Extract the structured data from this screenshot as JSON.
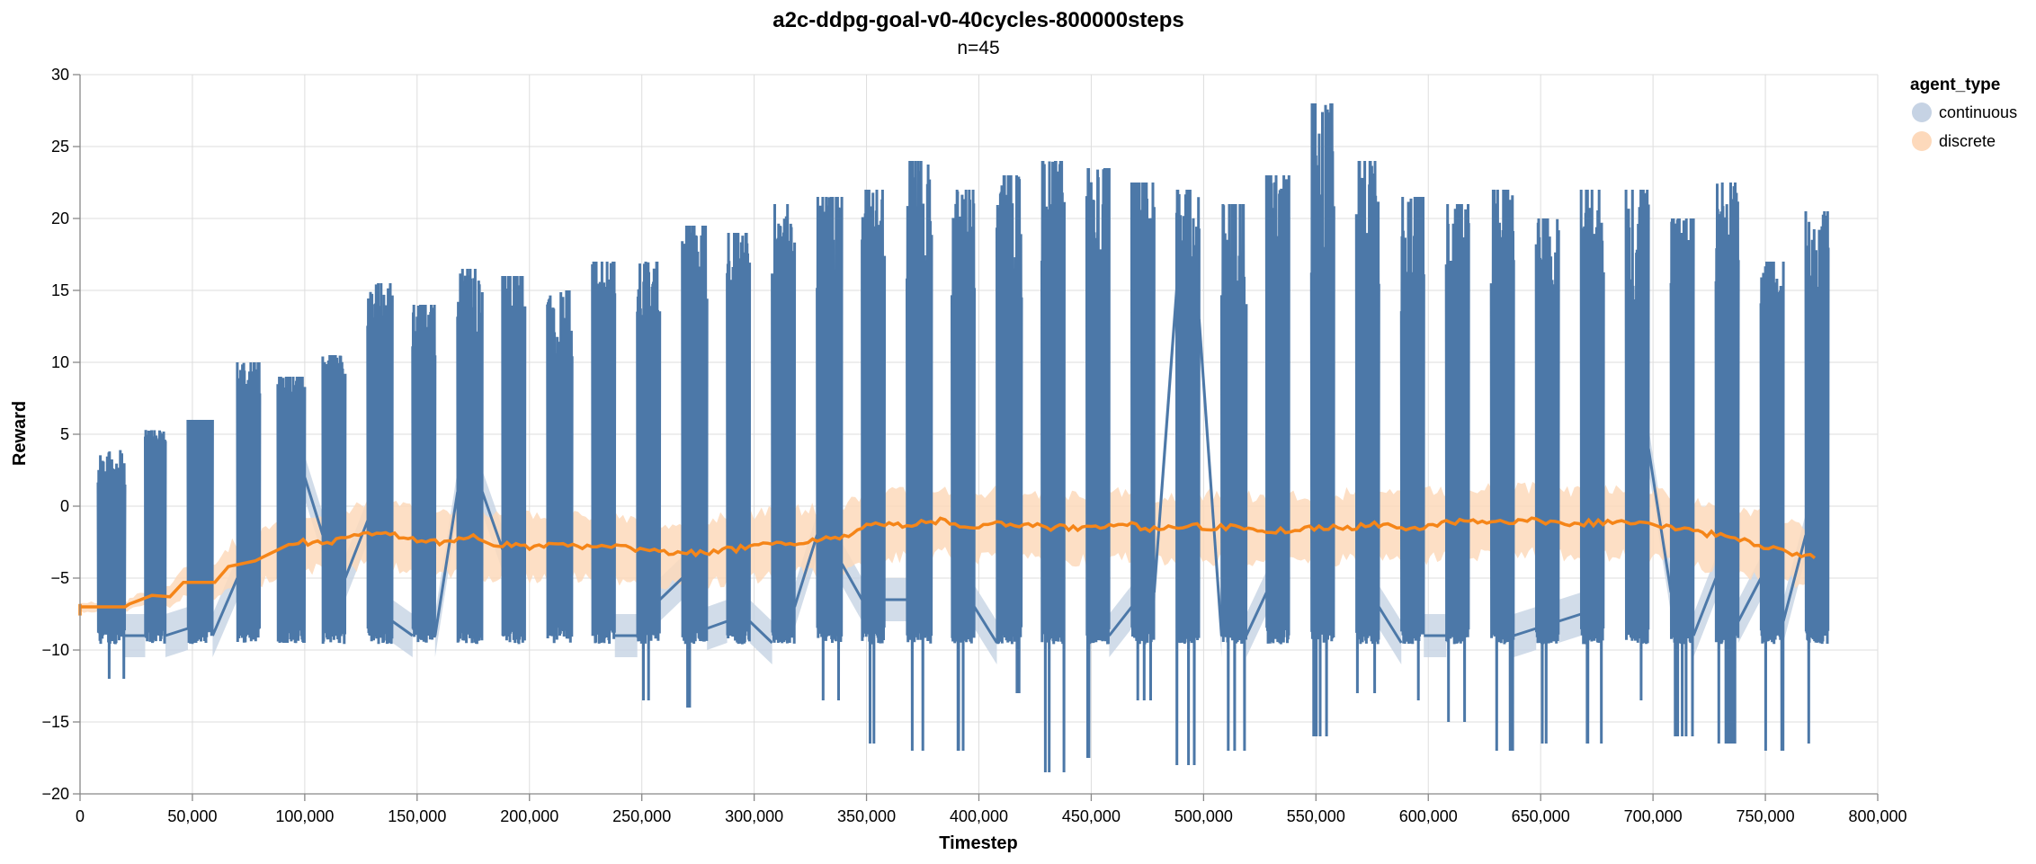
{
  "chart_data": {
    "type": "line",
    "title": "a2c-ddpg-goal-v0-40cycles-800000steps",
    "subtitle": "n=45",
    "xlabel": "Timestep",
    "ylabel": "Reward",
    "xlim": [
      0,
      800000
    ],
    "ylim": [
      -20,
      30
    ],
    "x_ticks": [
      0,
      50000,
      100000,
      150000,
      200000,
      250000,
      300000,
      350000,
      400000,
      450000,
      500000,
      550000,
      600000,
      650000,
      700000,
      750000,
      800000
    ],
    "x_tick_labels": [
      "0",
      "50,000",
      "100,000",
      "150,000",
      "200,000",
      "250,000",
      "300,000",
      "350,000",
      "400,000",
      "450,000",
      "500,000",
      "550,000",
      "600,000",
      "650,000",
      "700,000",
      "750,000",
      "800,000"
    ],
    "y_ticks": [
      -20,
      -15,
      -10,
      -5,
      0,
      5,
      10,
      15,
      20,
      25,
      30
    ],
    "y_tick_labels": [
      "−20",
      "−15",
      "−10",
      "−5",
      "0",
      "5",
      "10",
      "15",
      "20",
      "25",
      "30"
    ],
    "grid": true,
    "legend": {
      "title": "agent_type",
      "position": "top-right",
      "entries": [
        "continuous",
        "discrete"
      ]
    },
    "colors": {
      "continuous": "#4c78a8",
      "discrete": "#f58518",
      "continuous_band": "#c6d3e4",
      "discrete_band": "#fdd9bb"
    },
    "series": [
      {
        "name": "continuous",
        "note": "oscillating bursts per training cycle; [start, end, min, max]",
        "bursts": [
          [
            8000,
            20000,
            -12,
            1.5
          ],
          [
            29000,
            38000,
            -9,
            4.5
          ],
          [
            48000,
            59000,
            -9.5,
            6
          ],
          [
            70000,
            80000,
            -9,
            10
          ],
          [
            88000,
            100000,
            -9.5,
            9
          ],
          [
            108000,
            118000,
            -9,
            10.5
          ],
          [
            128000,
            139000,
            -9,
            15.5
          ],
          [
            148000,
            158000,
            -9,
            14
          ],
          [
            168000,
            179000,
            -9,
            16.5
          ],
          [
            188000,
            198000,
            -9,
            16
          ],
          [
            208000,
            219000,
            -9,
            15
          ],
          [
            228000,
            238000,
            -9,
            17
          ],
          [
            248000,
            258000,
            -13.5,
            17
          ],
          [
            268000,
            279000,
            -14,
            19.5
          ],
          [
            288000,
            298000,
            -9,
            19
          ],
          [
            308000,
            318000,
            -9.5,
            21
          ],
          [
            328000,
            339000,
            -13.5,
            21.5
          ],
          [
            348000,
            358000,
            -16.5,
            22
          ],
          [
            368000,
            379000,
            -17,
            24
          ],
          [
            388000,
            398000,
            -17,
            22
          ],
          [
            408000,
            419000,
            -13,
            23
          ],
          [
            428000,
            438000,
            -18.5,
            24
          ],
          [
            448000,
            458000,
            -17.5,
            23.5
          ],
          [
            468000,
            478000,
            -13.5,
            22.5
          ],
          [
            488000,
            498000,
            -18,
            22
          ],
          [
            508000,
            519000,
            -17,
            21
          ],
          [
            528000,
            538000,
            -13,
            23
          ],
          [
            548000,
            558000,
            -16,
            28
          ],
          [
            568000,
            578000,
            -13,
            24
          ],
          [
            588000,
            598000,
            -13.5,
            21.5
          ],
          [
            608000,
            618000,
            -15,
            21
          ],
          [
            628000,
            638000,
            -17,
            22
          ],
          [
            648000,
            658000,
            -16.5,
            20
          ],
          [
            668000,
            678000,
            -16.5,
            22
          ],
          [
            688000,
            698000,
            -13.5,
            22
          ],
          [
            708000,
            718000,
            -16,
            20
          ],
          [
            728000,
            738000,
            -16.5,
            22.5
          ],
          [
            748000,
            758000,
            -17,
            17
          ],
          [
            768000,
            778000,
            -16.5,
            20.5
          ]
        ],
        "connectors": [
          [
            20000,
            -9,
            29000,
            -9
          ],
          [
            38000,
            -9,
            48000,
            -8.5
          ],
          [
            59000,
            -9,
            70000,
            -5
          ],
          [
            100000,
            2,
            108000,
            -2
          ],
          [
            118000,
            -5,
            128000,
            -1
          ],
          [
            139000,
            -8,
            148000,
            -9
          ],
          [
            158000,
            -9,
            168000,
            1
          ],
          [
            179000,
            1,
            188000,
            -3
          ],
          [
            238000,
            -9,
            248000,
            -9
          ],
          [
            258000,
            -6.5,
            268000,
            -5
          ],
          [
            279000,
            -8.5,
            288000,
            -8
          ],
          [
            298000,
            -8,
            308000,
            -9.5
          ],
          [
            318000,
            -7,
            328000,
            -2
          ],
          [
            339000,
            -4,
            348000,
            -6.5
          ],
          [
            358000,
            -6.5,
            368000,
            -6.5
          ],
          [
            398000,
            -7,
            408000,
            -9.5
          ],
          [
            458000,
            -9,
            468000,
            -7
          ],
          [
            478000,
            -6,
            488000,
            15
          ],
          [
            498000,
            13,
            508000,
            -9
          ],
          [
            519000,
            -9,
            528000,
            -6
          ],
          [
            578000,
            -7,
            588000,
            -9.5
          ],
          [
            598000,
            -9,
            608000,
            -9
          ],
          [
            638000,
            -9,
            648000,
            -8.5
          ],
          [
            658000,
            -8,
            668000,
            -7.5
          ],
          [
            698000,
            4,
            708000,
            -6
          ],
          [
            718000,
            -9,
            728000,
            -5
          ],
          [
            738000,
            -8,
            748000,
            -5
          ],
          [
            758000,
            -8,
            768000,
            -2
          ]
        ]
      },
      {
        "name": "discrete",
        "note": "mean line with ± band",
        "x": [
          0,
          20000,
          22000,
          32000,
          40000,
          46000,
          60000,
          66000,
          78000,
          95000,
          110000,
          128000,
          136000,
          150000,
          160000,
          175000,
          182000,
          200000,
          215000,
          230000,
          245000,
          262000,
          280000,
          300000,
          318000,
          340000,
          350000,
          368000,
          385000,
          398000,
          412000,
          430000,
          448000,
          462000,
          478000,
          495000,
          512000,
          530000,
          545000,
          562000,
          578000,
          596000,
          612000,
          630000,
          648000,
          665000,
          682000,
          698000,
          712000,
          728000,
          745000,
          760000,
          772000
        ],
        "y": [
          -7,
          -7,
          -6.8,
          -6.2,
          -6.3,
          -5.3,
          -5.3,
          -4.2,
          -3.8,
          -2.5,
          -2.5,
          -2,
          -1.9,
          -2.3,
          -2.5,
          -2.2,
          -2.7,
          -2.8,
          -2.8,
          -2.9,
          -2.9,
          -3.3,
          -3.2,
          -2.8,
          -2.5,
          -2.2,
          -1.4,
          -1.3,
          -1,
          -1.5,
          -1.2,
          -1.5,
          -1.5,
          -1.2,
          -1.6,
          -1.4,
          -1.5,
          -1.7,
          -1.6,
          -1.5,
          -1.3,
          -1.5,
          -1.1,
          -1.2,
          -1,
          -1.2,
          -1.1,
          -1.3,
          -1.6,
          -2,
          -2.6,
          -3.2,
          -3.6
        ],
        "band_halfwidth": [
          0.3,
          0.3,
          0.4,
          0.5,
          0.8,
          1.0,
          1.2,
          1.4,
          1.6,
          1.8,
          1.9,
          2.1,
          2.1,
          2.2,
          2.2,
          2.2,
          2.2,
          2.2,
          2.2,
          2.2,
          2.2,
          2.2,
          2.2,
          2.2,
          2.2,
          2.2,
          2.3,
          2.3,
          2.3,
          2.3,
          2.3,
          2.3,
          2.3,
          2.3,
          2.3,
          2.3,
          2.3,
          2.3,
          2.3,
          2.3,
          2.3,
          2.3,
          2.3,
          2.3,
          2.3,
          2.3,
          2.3,
          2.3,
          2.3,
          2.3,
          2.3,
          2.0,
          1.8
        ]
      }
    ]
  }
}
